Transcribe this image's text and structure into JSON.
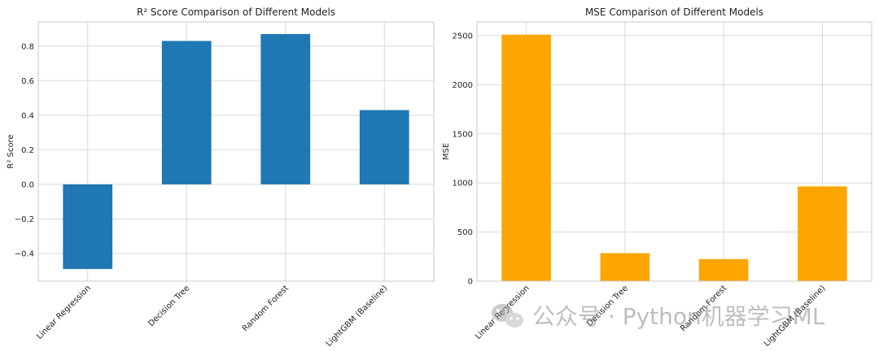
{
  "chart_data": [
    {
      "type": "bar",
      "title": "R² Score Comparison of Different Models",
      "xlabel": "",
      "ylabel": "R² Score",
      "categories": [
        "Linear Regression",
        "Decision Tree",
        "Random Forest",
        "LightGBM (Baseline)"
      ],
      "values": [
        -0.49,
        0.83,
        0.87,
        0.43
      ],
      "ylim": [
        -0.56,
        0.94
      ],
      "yticks": [
        -0.4,
        -0.2,
        0.0,
        0.2,
        0.4,
        0.6,
        0.8
      ],
      "ytick_labels": [
        "−0.4",
        "−0.2",
        "0.0",
        "0.2",
        "0.4",
        "0.6",
        "0.8"
      ],
      "color": "#1f77b4",
      "grid": true
    },
    {
      "type": "bar",
      "title": "MSE Comparison of Different Models",
      "xlabel": "",
      "ylabel": "MSE",
      "categories": [
        "Linear Regression",
        "Decision Tree",
        "Random Forest",
        "LightGBM (Baseline)"
      ],
      "values": [
        2510,
        285,
        225,
        965
      ],
      "ylim": [
        0,
        2640
      ],
      "yticks": [
        0,
        500,
        1000,
        1500,
        2000,
        2500
      ],
      "ytick_labels": [
        "0",
        "500",
        "1000",
        "1500",
        "2000",
        "2500"
      ],
      "color": "#ffa500",
      "grid": true
    }
  ],
  "watermark": {
    "text": "公众号 · Python机器学习ML",
    "icon": "wechat-icon"
  }
}
